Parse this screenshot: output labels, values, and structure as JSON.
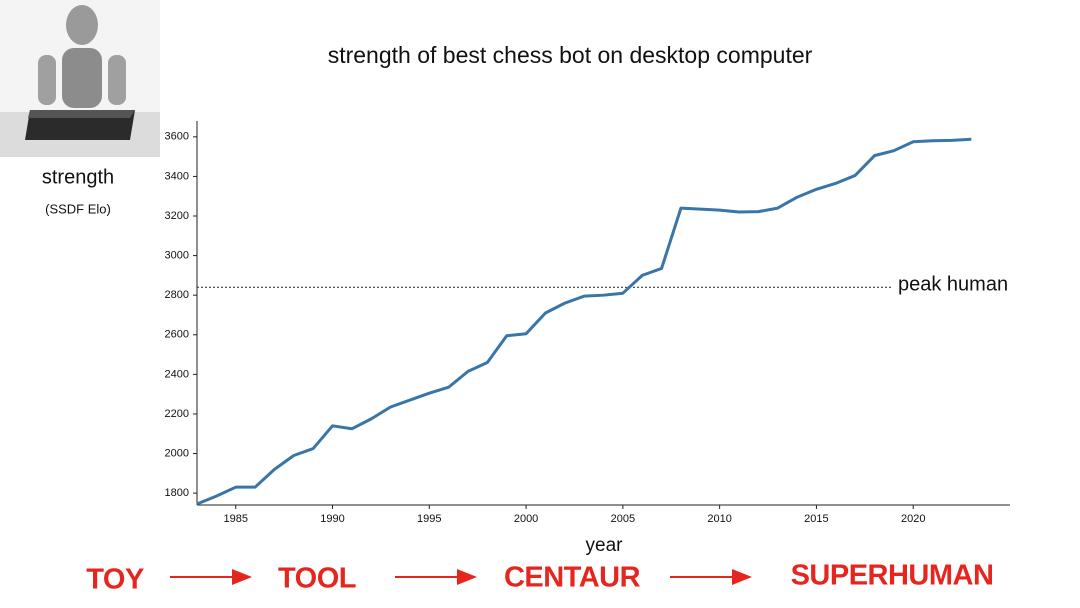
{
  "chart_data": {
    "type": "line",
    "title": "strength of best chess bot on desktop computer",
    "y_label": "strength",
    "y_sublabel": "(SSDF Elo)",
    "x_label": "year",
    "x": [
      1983,
      1984,
      1985,
      1986,
      1987,
      1988,
      1989,
      1990,
      1991,
      1992,
      1993,
      1994,
      1995,
      1996,
      1997,
      1998,
      1999,
      2000,
      2001,
      2002,
      2003,
      2004,
      2005,
      2006,
      2007,
      2008,
      2009,
      2010,
      2011,
      2012,
      2013,
      2014,
      2015,
      2016,
      2017,
      2018,
      2019,
      2020,
      2021,
      2022,
      2023
    ],
    "series": [
      {
        "color": "#3a75a8",
        "values": [
          1745,
          1785,
          1830,
          1830,
          1920,
          1990,
          2025,
          2140,
          2125,
          2175,
          2235,
          2270,
          2305,
          2335,
          2415,
          2460,
          2595,
          2605,
          2710,
          2760,
          2795,
          2800,
          2810,
          2900,
          2935,
          3240,
          3235,
          3230,
          3220,
          3222,
          3240,
          3295,
          3335,
          3365,
          3405,
          3505,
          3530,
          3575,
          3580,
          3582,
          3588
        ]
      }
    ],
    "xlim": [
      1983,
      2025
    ],
    "ylim": [
      1740,
      3680
    ],
    "xticks": [
      1985,
      1990,
      1995,
      2000,
      2005,
      2010,
      2015,
      2020
    ],
    "yticks": [
      1800,
      2000,
      2200,
      2400,
      2600,
      2800,
      3000,
      3200,
      3400,
      3600
    ],
    "reference_line": {
      "value": 2840,
      "label": "peak human"
    },
    "stages": [
      "TOY",
      "TOOL",
      "CENTAUR",
      "SUPERHUMAN"
    ]
  }
}
